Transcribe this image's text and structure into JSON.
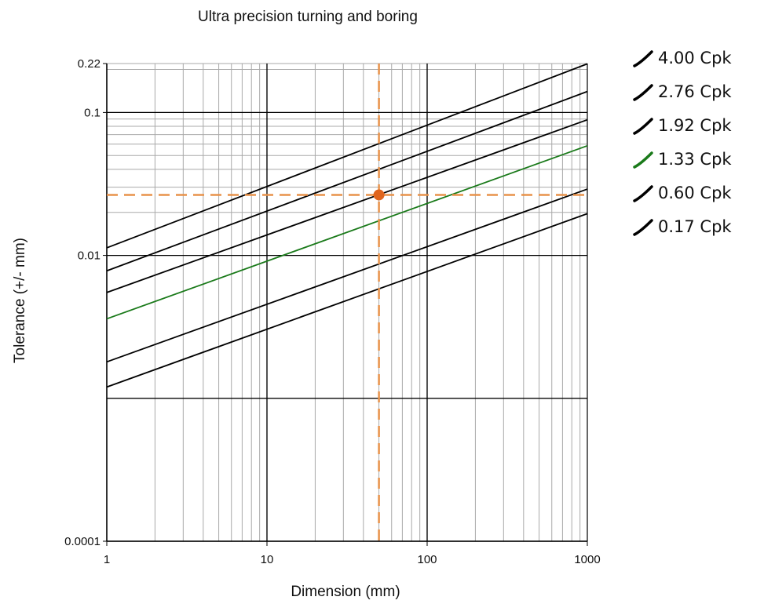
{
  "chart_data": {
    "type": "line",
    "title": "Ultra precision turning and boring",
    "xlabel": "Dimension (mm)",
    "ylabel": "Tolerance (+/- mm)",
    "x_scale": "log",
    "y_scale": "log",
    "xlim": [
      1,
      1000
    ],
    "ylim": [
      0.0001,
      0.22
    ],
    "x_ticks": [
      {
        "value": 1,
        "label": "1"
      },
      {
        "value": 10,
        "label": "10"
      },
      {
        "value": 100,
        "label": "100"
      },
      {
        "value": 1000,
        "label": "1000"
      }
    ],
    "y_ticks": [
      {
        "value": 0.0001,
        "label": "0.0001"
      },
      {
        "value": 0.01,
        "label": "0.01"
      },
      {
        "value": 0.1,
        "label": "0.1"
      },
      {
        "value": 0.22,
        "label": "0.22"
      }
    ],
    "grid": true,
    "legend_position": "right",
    "series": [
      {
        "name": "4.00 Cpk",
        "color": "#000000",
        "x": [
          1,
          1000
        ],
        "y": [
          0.0113,
          0.219
        ]
      },
      {
        "name": "2.76 Cpk",
        "color": "#000000",
        "x": [
          1,
          1000
        ],
        "y": [
          0.0078,
          0.1402
        ]
      },
      {
        "name": "1.92 Cpk",
        "color": "#000000",
        "x": [
          1,
          1000
        ],
        "y": [
          0.0055,
          0.0889
        ]
      },
      {
        "name": "1.33 Cpk",
        "color": "#1a7a1a",
        "x": [
          1,
          1000
        ],
        "y": [
          0.0036,
          0.0585
        ]
      },
      {
        "name": "0.60 Cpk",
        "color": "#000000",
        "x": [
          1,
          1000
        ],
        "y": [
          0.0018,
          0.0291
        ]
      },
      {
        "name": "0.17 Cpk",
        "color": "#000000",
        "x": [
          1,
          1000
        ],
        "y": [
          0.0012,
          0.0196
        ]
      }
    ],
    "marker": {
      "x": 50,
      "y": 0.0265,
      "color": "#e0651e"
    },
    "reference_lines": {
      "x": 50,
      "y": 0.0265,
      "color": "#e8924a",
      "style": "dashed"
    }
  }
}
